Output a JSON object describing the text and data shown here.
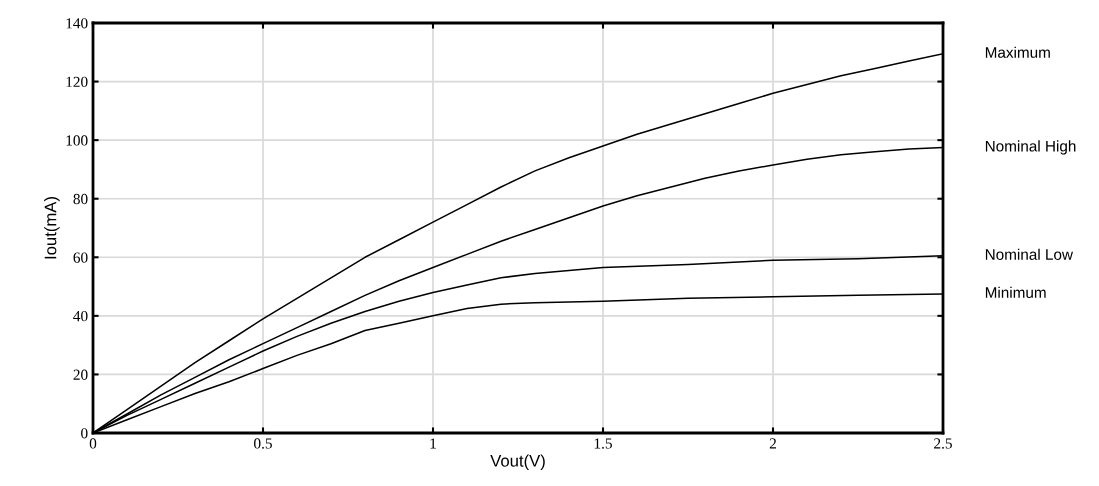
{
  "chart_data": {
    "type": "line",
    "xlabel": "Vout(V)",
    "ylabel": "Iout(mA)",
    "xlim": [
      0,
      2.5
    ],
    "xticks": [
      0,
      0.5,
      1,
      1.5,
      2,
      2.5
    ],
    "ylim": [
      0,
      140
    ],
    "yticks": [
      0,
      20,
      40,
      60,
      80,
      100,
      120,
      140
    ],
    "grid": true,
    "legend": false,
    "marker": "none",
    "line_style": "solid",
    "series": [
      {
        "name": "Maximum",
        "color": "#000000",
        "x": [
          0,
          0.1,
          0.2,
          0.3,
          0.4,
          0.5,
          0.6,
          0.7,
          0.8,
          0.9,
          1.0,
          1.1,
          1.2,
          1.3,
          1.4,
          1.5,
          1.6,
          1.7,
          1.8,
          1.9,
          2.0,
          2.1,
          2.2,
          2.3,
          2.4,
          2.5
        ],
        "values": [
          0,
          8,
          16,
          24,
          31.5,
          39,
          46,
          53,
          60,
          66,
          72,
          78,
          84,
          89.5,
          94,
          98,
          102,
          105.5,
          109,
          112.5,
          116,
          119,
          122,
          124.5,
          127,
          129.5
        ]
      },
      {
        "name": "Nominal High",
        "color": "#000000",
        "x": [
          0,
          0.1,
          0.2,
          0.3,
          0.4,
          0.5,
          0.6,
          0.7,
          0.8,
          0.9,
          1.0,
          1.1,
          1.2,
          1.3,
          1.4,
          1.5,
          1.6,
          1.7,
          1.8,
          1.9,
          2.0,
          2.1,
          2.2,
          2.3,
          2.4,
          2.5
        ],
        "values": [
          0,
          6.5,
          13,
          19,
          25,
          30.5,
          36,
          41.5,
          47,
          52,
          56.5,
          61,
          65.5,
          69.5,
          73.5,
          77.5,
          81,
          84,
          87,
          89.5,
          91.5,
          93.5,
          95,
          96,
          97,
          97.5
        ]
      },
      {
        "name": "Nominal Low",
        "color": "#000000",
        "x": [
          0,
          0.1,
          0.2,
          0.3,
          0.4,
          0.5,
          0.6,
          0.7,
          0.8,
          0.9,
          1.0,
          1.1,
          1.2,
          1.3,
          1.4,
          1.5,
          1.75,
          2.0,
          2.25,
          2.5
        ],
        "values": [
          0,
          6,
          11.5,
          17,
          22.5,
          28,
          33,
          37.5,
          41.5,
          45,
          48,
          50.5,
          53,
          54.5,
          55.5,
          56.5,
          57.5,
          59,
          59.5,
          60.5
        ]
      },
      {
        "name": "Minimum",
        "color": "#000000",
        "x": [
          0,
          0.1,
          0.2,
          0.3,
          0.4,
          0.5,
          0.6,
          0.7,
          0.8,
          0.9,
          1.0,
          1.1,
          1.2,
          1.3,
          1.5,
          1.75,
          2.0,
          2.25,
          2.5
        ],
        "values": [
          0,
          4.5,
          9,
          13.5,
          17.5,
          22,
          26.5,
          30.5,
          35,
          37.5,
          40,
          42.5,
          44,
          44.5,
          45,
          46,
          46.5,
          47,
          47.5
        ]
      }
    ]
  }
}
